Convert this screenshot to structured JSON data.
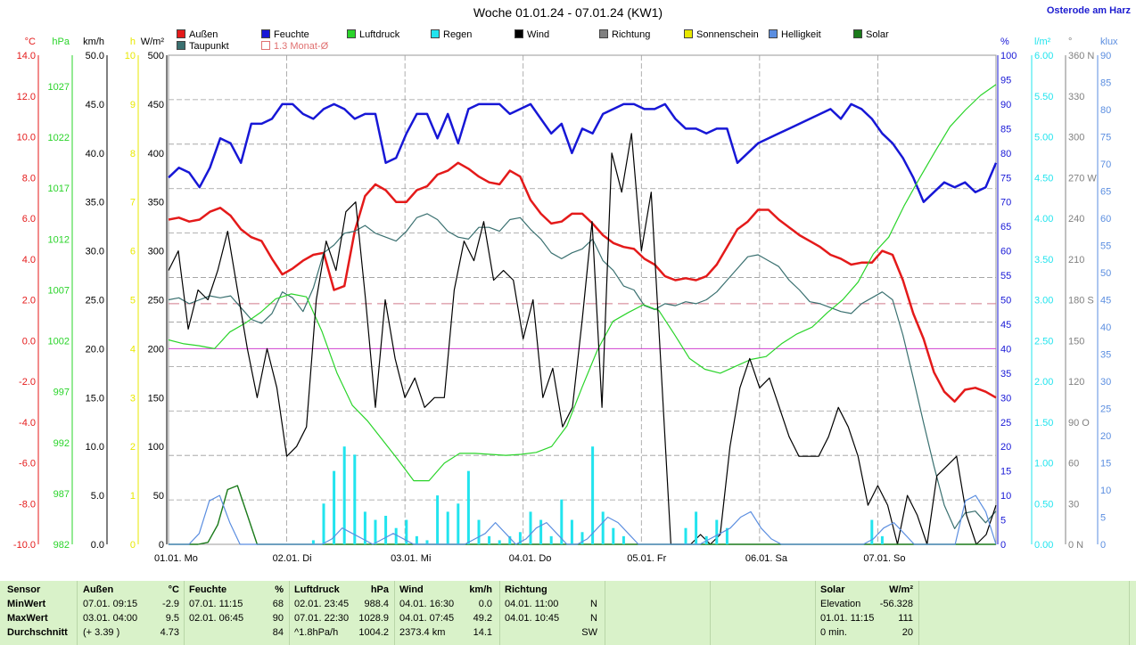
{
  "title": "Woche 01.01.24 - 07.01.24 (KW1)",
  "location": "Osterode am Harz",
  "colors": {
    "aussen": "#e41a1a",
    "feuchte": "#1717d6",
    "luftdruck": "#2ad42a",
    "regen": "#22e4ee",
    "wind": "#000000",
    "richtung": "#808080",
    "sonnenschein": "#e8e800",
    "helligkeit": "#5b8ee0",
    "solar": "#1a7a1a",
    "taupunkt": "#3a7070",
    "grid": "#9a9a9a",
    "avg": "#d07a8a",
    "zero": "#d040d0"
  },
  "legend": [
    {
      "key": "aussen",
      "label": "Außen"
    },
    {
      "key": "taupunkt",
      "label": "Taupunkt"
    },
    {
      "key": "feuchte",
      "label": "Feuchte"
    },
    {
      "key": "avg",
      "label": "1.3 Monat-Ø"
    },
    {
      "key": "luftdruck",
      "label": "Luftdruck"
    },
    {
      "key": "regen",
      "label": "Regen"
    },
    {
      "key": "wind",
      "label": "Wind"
    },
    {
      "key": "richtung",
      "label": "Richtung"
    },
    {
      "key": "sonnenschein",
      "label": "Sonnenschein"
    },
    {
      "key": "helligkeit",
      "label": "Helligkeit"
    },
    {
      "key": "solar",
      "label": "Solar"
    }
  ],
  "chart_data": {
    "type": "line",
    "x_range": [
      0,
      7
    ],
    "days": [
      "01.01. Mo",
      "02.01. Di",
      "03.01. Mi",
      "04.01. Do",
      "05.01. Fr",
      "06.01. Sa",
      "07.01. So"
    ],
    "axes": {
      "left": [
        {
          "unit": "°C",
          "color": "#e41a1a",
          "ticks": [
            "14.0",
            "12.0",
            "10.0",
            "8.0",
            "6.0",
            "4.0",
            "2.0",
            "0.0",
            "-2.0",
            "-4.0",
            "-6.0",
            "-8.0",
            "-10.0"
          ]
        },
        {
          "unit": "hPa",
          "color": "#2ad42a",
          "ticks": [
            "1027",
            "1022",
            "1017",
            "1012",
            "1007",
            "1002",
            "997",
            "992",
            "987",
            "982"
          ]
        },
        {
          "unit": "km/h",
          "color": "#000000",
          "ticks": [
            "50.0",
            "45.0",
            "40.0",
            "35.0",
            "30.0",
            "25.0",
            "20.0",
            "15.0",
            "10.0",
            "5.0",
            "0.0"
          ]
        },
        {
          "unit": "h",
          "color": "#e8e800",
          "ticks": [
            "10",
            "9",
            "8",
            "7",
            "6",
            "5",
            "4",
            "3",
            "2",
            "1",
            "0"
          ]
        },
        {
          "unit": "W/m²",
          "color": "#000000",
          "ticks": [
            "500",
            "450",
            "400",
            "350",
            "300",
            "250",
            "200",
            "150",
            "100",
            "50",
            "0"
          ]
        }
      ],
      "right": [
        {
          "unit": "%",
          "color": "#1717d6",
          "ticks": [
            "100",
            "95",
            "90",
            "85",
            "80",
            "75",
            "70",
            "65",
            "60",
            "55",
            "50",
            "45",
            "40",
            "35",
            "30",
            "25",
            "20",
            "15",
            "10",
            "5",
            "0"
          ]
        },
        {
          "unit": "l/m²",
          "color": "#22e4ee",
          "ticks": [
            "6.00",
            "5.50",
            "5.00",
            "4.50",
            "4.00",
            "3.50",
            "3.00",
            "2.50",
            "2.00",
            "1.50",
            "1.00",
            "0.50",
            "0.00"
          ]
        },
        {
          "unit": "°",
          "color": "#808080",
          "ticks": [
            "360 N",
            "330",
            "300",
            "270 W",
            "240",
            "210",
            "180 S",
            "150",
            "120",
            "90 O",
            "60",
            "30",
            "0 N"
          ]
        },
        {
          "unit": "klux",
          "color": "#5b8ee0",
          "ticks": [
            "90",
            "85",
            "80",
            "75",
            "70",
            "65",
            "60",
            "55",
            "50",
            "45",
            "40",
            "35",
            "30",
            "25",
            "20",
            "15",
            "10",
            "5",
            "0"
          ]
        }
      ]
    },
    "series": [
      {
        "name": "Außen",
        "unit": "°C",
        "ylim": [
          -10,
          15
        ],
        "values": [
          6.6,
          6.7,
          6.5,
          6.6,
          7.0,
          7.2,
          6.8,
          6.1,
          5.7,
          5.5,
          4.6,
          3.8,
          4.1,
          4.5,
          4.8,
          4.9,
          3.0,
          3.2,
          6.0,
          7.8,
          8.4,
          8.1,
          7.5,
          7.5,
          8.1,
          8.3,
          8.9,
          9.1,
          9.5,
          9.2,
          8.8,
          8.5,
          8.4,
          9.1,
          8.8,
          7.6,
          6.9,
          6.4,
          6.5,
          6.9,
          6.9,
          6.4,
          5.8,
          5.4,
          5.2,
          5.1,
          4.6,
          4.3,
          3.7,
          3.5,
          3.6,
          3.5,
          3.7,
          4.3,
          5.2,
          6.1,
          6.5,
          7.1,
          7.1,
          6.6,
          6.2,
          5.8,
          5.5,
          5.2,
          4.8,
          4.6,
          4.3,
          4.4,
          4.4,
          5.0,
          4.8,
          3.5,
          1.8,
          0.5,
          -1.2,
          -2.2,
          -2.7,
          -2.1,
          -2.0,
          -2.2,
          -2.5
        ]
      },
      {
        "name": "Taupunkt",
        "unit": "°C",
        "ylim": [
          -10,
          15
        ],
        "values": [
          2.5,
          2.6,
          2.3,
          2.5,
          2.7,
          2.6,
          2.7,
          2.1,
          1.5,
          1.3,
          1.8,
          2.9,
          2.6,
          1.9,
          3.1,
          4.9,
          5.3,
          5.9,
          6.0,
          6.3,
          5.9,
          5.7,
          5.5,
          6.0,
          6.7,
          6.9,
          6.6,
          6.0,
          5.7,
          5.6,
          6.2,
          6.2,
          6.0,
          6.6,
          6.7,
          6.1,
          5.6,
          4.9,
          4.6,
          4.9,
          5.1,
          5.6,
          4.5,
          4.0,
          3.2,
          3.0,
          2.2,
          2.0,
          2.3,
          2.2,
          2.4,
          2.3,
          2.5,
          2.9,
          3.5,
          4.1,
          4.7,
          4.8,
          4.5,
          4.2,
          3.5,
          3.0,
          2.4,
          2.3,
          2.1,
          1.9,
          1.8,
          2.3,
          2.6,
          2.9,
          2.5,
          0.7,
          -1.5,
          -3.8,
          -6.0,
          -8.0,
          -9.2,
          -8.4,
          -8.3,
          -8.9,
          -8.3
        ]
      },
      {
        "name": "Feuchte",
        "unit": "%",
        "ylim": [
          0,
          100
        ],
        "values": [
          75,
          77,
          76,
          73,
          77,
          83,
          82,
          78,
          86,
          86,
          87,
          90,
          90,
          88,
          87,
          89,
          90,
          89,
          87,
          88,
          88,
          78,
          79,
          84,
          88,
          88,
          83,
          88,
          82,
          89,
          90,
          90,
          90,
          88,
          89,
          90,
          87,
          84,
          86,
          80,
          85,
          84,
          88,
          89,
          90,
          90,
          89,
          89,
          90,
          87,
          85,
          85,
          84,
          85,
          85,
          78,
          80,
          82,
          83,
          84,
          85,
          86,
          87,
          88,
          89,
          87,
          90,
          89,
          87,
          84,
          82,
          79,
          75,
          70,
          72,
          74,
          73,
          74,
          72,
          73,
          78
        ]
      },
      {
        "name": "Luftdruck",
        "unit": "hPa",
        "ylim": [
          982,
          1032
        ],
        "values": [
          1002.9,
          1002.5,
          1002.3,
          1002.0,
          1003.7,
          1004.6,
          1005.7,
          1007.1,
          1007.6,
          1007.3,
          1003.8,
          999.5,
          996.2,
          994.6,
          992.6,
          990.6,
          988.5,
          988.5,
          990.3,
          991.3,
          991.3,
          991.2,
          991.1,
          991.2,
          991.4,
          992.0,
          994.1,
          998.1,
          1001.9,
          1004.8,
          1005.7,
          1006.5,
          1005.9,
          1003.5,
          1001.0,
          999.9,
          999.5,
          1000.2,
          1000.9,
          1001.2,
          1002.5,
          1003.5,
          1004.2,
          1005.7,
          1007.0,
          1008.8,
          1011.7,
          1013.4,
          1016.6,
          1019.4,
          1022.1,
          1024.7,
          1026.4,
          1027.9,
          1029.0
        ]
      },
      {
        "name": "Wind",
        "unit": "km/h",
        "ylim": [
          0,
          50
        ],
        "values": [
          28,
          30,
          22,
          26,
          25,
          28,
          32,
          26,
          20,
          15,
          20,
          16,
          9,
          10,
          12,
          25,
          31,
          28,
          34,
          35,
          25,
          14,
          25,
          19,
          15,
          17,
          14,
          15,
          15,
          26,
          31,
          29,
          33,
          27,
          28,
          27,
          21,
          25,
          15,
          18,
          12,
          14,
          23,
          33,
          14,
          40,
          36,
          42,
          30,
          36,
          18,
          0,
          0,
          0,
          1,
          0,
          1,
          10,
          16,
          19,
          16,
          17,
          14,
          11,
          9,
          9,
          9,
          11,
          14,
          12,
          9,
          4,
          6,
          4,
          0,
          5,
          3,
          0,
          7,
          8,
          9,
          3,
          0,
          1,
          4
        ]
      },
      {
        "name": "Solar",
        "unit": "W/m²",
        "ylim": [
          0,
          500
        ],
        "values": [
          0,
          0,
          0,
          0,
          2,
          20,
          56,
          60,
          30,
          0,
          0,
          0,
          0,
          0,
          0,
          0,
          0,
          0,
          0,
          0,
          0,
          0,
          0,
          0,
          0,
          0,
          0,
          0,
          0,
          0,
          0,
          0,
          0,
          0,
          0,
          0,
          0,
          0,
          0,
          0,
          0,
          0,
          0,
          0,
          0,
          0,
          0,
          0,
          0,
          0,
          0,
          0,
          0,
          0,
          0,
          0,
          0,
          0,
          0,
          0,
          0,
          0,
          0,
          0,
          0,
          0,
          0,
          0,
          0,
          0,
          0,
          0,
          0,
          0,
          0,
          0,
          0,
          0,
          0,
          0,
          0,
          0,
          0,
          0,
          0
        ]
      },
      {
        "name": "Regen",
        "unit": "l/m²",
        "ylim": [
          0,
          6
        ],
        "values": [
          0,
          0,
          0,
          0,
          0,
          0,
          0,
          0,
          0,
          0,
          0,
          0,
          0,
          0,
          0.05,
          0.5,
          0.9,
          1.2,
          1.1,
          0.4,
          0.3,
          0.35,
          0.2,
          0.3,
          0.1,
          0.05,
          0.6,
          0.4,
          0.5,
          0.9,
          0.3,
          0.1,
          0.05,
          0.1,
          0.15,
          0.4,
          0.3,
          0.1,
          0.55,
          0.3,
          0.15,
          1.2,
          0.4,
          0.2,
          0.1,
          0,
          0,
          0,
          0,
          0,
          0.2,
          0.4,
          0.1,
          0.3,
          0.2,
          0,
          0,
          0,
          0,
          0,
          0,
          0,
          0,
          0,
          0,
          0,
          0,
          0,
          0.3,
          0.1,
          0,
          0,
          0,
          0,
          0,
          0,
          0,
          0,
          0,
          0,
          0
        ]
      },
      {
        "name": "Helligkeit",
        "unit": "klux",
        "ylim": [
          0,
          90
        ],
        "values": [
          0,
          0,
          0,
          2,
          8,
          9,
          4,
          0,
          0,
          0,
          0,
          0,
          0,
          0,
          0,
          0,
          1,
          3,
          2,
          1,
          0,
          1,
          2,
          1,
          0,
          0,
          0,
          0,
          0,
          0,
          1,
          2,
          4,
          2,
          0,
          1,
          3,
          4,
          2,
          0,
          0,
          1,
          3,
          5,
          4,
          2,
          0,
          0,
          0,
          0,
          0,
          0,
          0,
          1,
          2,
          3,
          5,
          6,
          3,
          1,
          0,
          0,
          0,
          0,
          0,
          0,
          0,
          0,
          0,
          1,
          3,
          4,
          2,
          0,
          0,
          0,
          0,
          0,
          8,
          9,
          6,
          0
        ]
      }
    ],
    "avg_line": {
      "label": "1.3 Monat-Ø",
      "unit": "°C",
      "value": 2.3
    }
  },
  "stats": {
    "headers": {
      "sensor": "Sensor",
      "aussen": "Außen",
      "aussen_unit": "°C",
      "feuchte": "Feuchte",
      "feuchte_unit": "%",
      "luftdruck": "Luftdruck",
      "luftdruck_unit": "hPa",
      "wind": "Wind",
      "wind_unit": "km/h",
      "richtung": "Richtung",
      "solar": "Solar",
      "solar_unit": "W/m²"
    },
    "row_labels": [
      "MinWert",
      "MaxWert",
      "Durchschnitt"
    ],
    "aussen": [
      [
        "07.01.  09:15",
        "-2.9"
      ],
      [
        "03.01.  04:00",
        "9.5"
      ],
      [
        "(+ 3.39 )",
        "4.73"
      ]
    ],
    "feuchte": [
      [
        "07.01.  11:15",
        "68"
      ],
      [
        "02.01.  06:45",
        "90"
      ],
      [
        "",
        "84"
      ]
    ],
    "luftdruck": [
      [
        "02.01.  23:45",
        "988.4"
      ],
      [
        "07.01.  22:30",
        "1028.9"
      ],
      [
        "^1.8hPa/h",
        "1004.2"
      ]
    ],
    "wind": [
      [
        "04.01.  16:30",
        "0.0"
      ],
      [
        "04.01.  07:45",
        "49.2"
      ],
      [
        "2373.4 km",
        "14.1"
      ]
    ],
    "richtung": [
      [
        "04.01.  11:00",
        "N"
      ],
      [
        "04.01.  10:45",
        "N"
      ],
      [
        "",
        "SW"
      ]
    ],
    "solar": [
      [
        "Elevation",
        "-56.328"
      ],
      [
        "01.01.  11:15",
        "111"
      ],
      [
        "0 min.",
        "20"
      ]
    ]
  }
}
